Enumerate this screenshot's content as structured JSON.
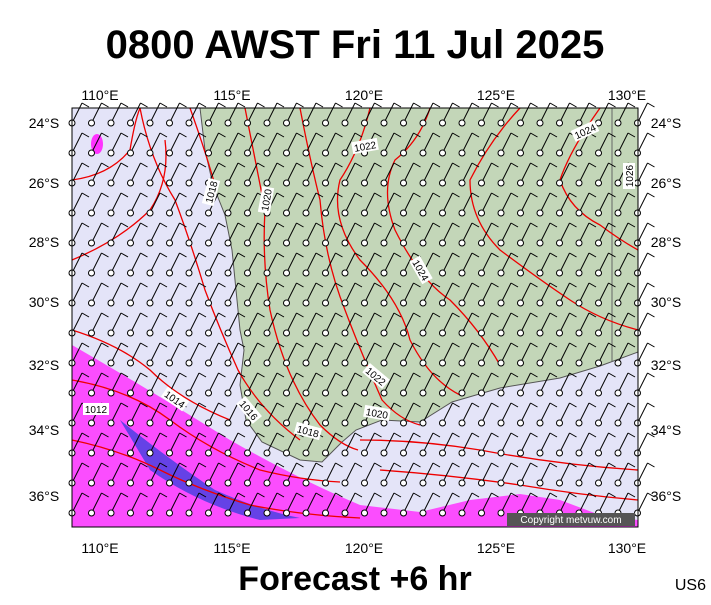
{
  "header": {
    "title": "0800 AWST Fri 11 Jul 2025"
  },
  "map": {
    "longitude_labels": [
      "110°E",
      "115°E",
      "120°E",
      "125°E",
      "130°E"
    ],
    "latitude_labels": [
      "24°S",
      "26°S",
      "28°S",
      "30°S",
      "32°S",
      "34°S",
      "36°S"
    ],
    "isobar_labels": [
      "1024",
      "1022",
      "1018",
      "1020",
      "1026",
      "1024",
      "1022",
      "1020",
      "1018",
      "1016",
      "1014",
      "1012"
    ],
    "copyright": "Copyright metvuw.com"
  },
  "footer": {
    "caption": "Forecast +6 hr",
    "code": "US6"
  }
}
